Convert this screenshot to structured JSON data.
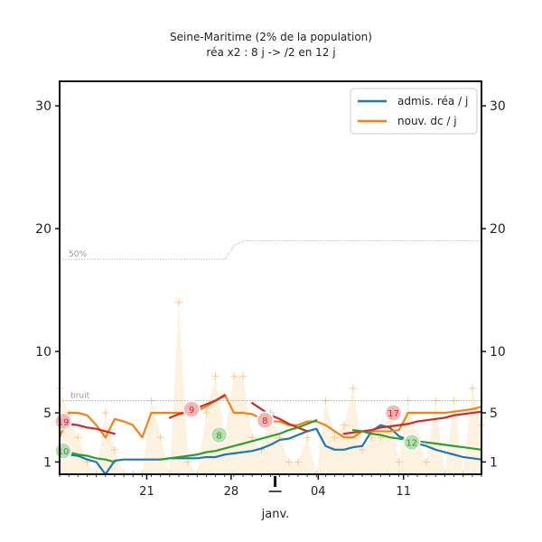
{
  "chart_data": {
    "type": "line",
    "title": "Seine-Maritime (2% de la population)",
    "subtitle": "réa x2 : 8 j -> /2 en 12 j",
    "xlabel": "janv.",
    "x_ticks": [
      "21",
      "28",
      "04",
      "11"
    ],
    "y_ticks": [
      "1",
      "5",
      "10",
      "20",
      "30"
    ],
    "ylim": [
      0,
      32
    ],
    "legend_position": "top-right",
    "ref_labels": {
      "noise": "bruit",
      "half": "50%"
    },
    "series": [
      {
        "name": "admis. réa / j",
        "color": "#1f77b4",
        "x": [
          0,
          1,
          2,
          3,
          4,
          5,
          6,
          7,
          8,
          9,
          10,
          11,
          12,
          13,
          14,
          15,
          16,
          17,
          18,
          19,
          20,
          21,
          22,
          23,
          24,
          25,
          26,
          27,
          28,
          29,
          30,
          31,
          32,
          33,
          34,
          35,
          36,
          37,
          38,
          39,
          40,
          41,
          42,
          43,
          44,
          45,
          46
        ],
        "values": [
          1.8,
          1.6,
          1.5,
          1.2,
          1.0,
          0.0,
          1.1,
          1.2,
          1.2,
          1.2,
          1.2,
          1.2,
          1.3,
          1.3,
          1.3,
          1.3,
          1.4,
          1.4,
          1.6,
          1.7,
          1.8,
          1.9,
          2.1,
          2.4,
          2.8,
          2.9,
          3.2,
          3.5,
          3.7,
          2.3,
          2.0,
          2.0,
          2.2,
          2.3,
          3.5,
          4.0,
          3.8,
          3.1,
          2.8,
          2.5,
          2.3,
          2.0,
          1.8,
          1.6,
          1.4,
          1.3,
          1.2
        ]
      },
      {
        "name": "nouv. dc / j",
        "color": "#ff7f0e",
        "x": [
          0,
          1,
          2,
          3,
          4,
          5,
          6,
          7,
          8,
          9,
          10,
          11,
          12,
          13,
          14,
          15,
          16,
          17,
          18,
          19,
          20,
          21,
          22,
          23,
          24,
          25,
          26,
          27,
          28,
          29,
          30,
          31,
          32,
          33,
          34,
          35,
          36,
          37,
          38,
          39,
          40,
          41,
          42,
          43,
          44,
          45,
          46
        ],
        "values": [
          3.0,
          5.0,
          5.0,
          4.8,
          4.0,
          3.0,
          4.5,
          4.3,
          4.0,
          3.0,
          5.0,
          5.0,
          5.0,
          5.0,
          5.0,
          5.2,
          5.5,
          6.0,
          6.5,
          5.0,
          5.0,
          4.9,
          4.5,
          4.3,
          4.3,
          4.0,
          4.0,
          4.3,
          4.3,
          4.0,
          3.5,
          3.0,
          3.0,
          3.5,
          3.5,
          3.5,
          3.5,
          3.6,
          5.0,
          5.0,
          5.0,
          5.0,
          5.0,
          5.1,
          5.2,
          5.3,
          5.5
        ]
      }
    ],
    "trend_lines": [
      {
        "color": "#d62728",
        "x": [
          0,
          1,
          2,
          3,
          4,
          5,
          6
        ],
        "values": [
          4.3,
          4.1,
          4.0,
          3.8,
          3.7,
          3.5,
          3.3
        ],
        "label": "19",
        "label_x": 0,
        "label_y": 4.3
      },
      {
        "color": "#d62728",
        "x": [
          12,
          13,
          14,
          15,
          16,
          17,
          18
        ],
        "values": [
          4.6,
          4.9,
          5.1,
          5.4,
          5.7,
          6.0,
          6.4
        ],
        "label": "9",
        "label_x": 14,
        "label_y": 5.3
      },
      {
        "color": "#d62728",
        "x": [
          21,
          22,
          23,
          24,
          25,
          26,
          27
        ],
        "values": [
          5.8,
          5.3,
          4.8,
          4.5,
          4.1,
          3.8,
          3.5
        ],
        "label": "8",
        "label_x": 22,
        "label_y": 4.4
      },
      {
        "color": "#d62728",
        "x": [
          31,
          32,
          33,
          34,
          35,
          36,
          37,
          38,
          39,
          40,
          41,
          42,
          43,
          44,
          45,
          46
        ],
        "values": [
          3.3,
          3.4,
          3.5,
          3.6,
          3.8,
          3.9,
          4.0,
          4.1,
          4.3,
          4.4,
          4.5,
          4.6,
          4.8,
          4.9,
          5.0,
          5.1
        ],
        "label": "17",
        "label_x": 36,
        "label_y": 5.0
      },
      {
        "color": "#2ca02c",
        "x": [
          0,
          1,
          2,
          3,
          4,
          5,
          6
        ],
        "values": [
          1.9,
          1.8,
          1.6,
          1.5,
          1.3,
          1.2,
          1.0
        ],
        "label": "10",
        "label_x": 0,
        "label_y": 1.9
      },
      {
        "color": "#2ca02c",
        "x": [
          11,
          12,
          13,
          14,
          15,
          16,
          17,
          18,
          19,
          20,
          21,
          22,
          23,
          24,
          25,
          26,
          27,
          28
        ],
        "values": [
          1.2,
          1.3,
          1.4,
          1.5,
          1.6,
          1.8,
          1.9,
          2.1,
          2.3,
          2.5,
          2.7,
          2.9,
          3.1,
          3.3,
          3.6,
          3.8,
          4.1,
          4.4
        ],
        "label": "8",
        "label_x": 17,
        "label_y": 3.2
      },
      {
        "color": "#2ca02c",
        "x": [
          32,
          33,
          34,
          35,
          36,
          37,
          38,
          39,
          40,
          41,
          42,
          43,
          44,
          45,
          46
        ],
        "values": [
          3.6,
          3.5,
          3.3,
          3.2,
          3.0,
          2.9,
          2.8,
          2.7,
          2.6,
          2.5,
          2.4,
          2.3,
          2.2,
          2.1,
          2.0
        ],
        "label": "12",
        "label_x": 38,
        "label_y": 2.6
      }
    ],
    "raw_counts": {
      "x": [
        0,
        1,
        2,
        3,
        4,
        5,
        6,
        7,
        8,
        9,
        10,
        11,
        12,
        13,
        14,
        15,
        16,
        17,
        18,
        19,
        20,
        21,
        22,
        23,
        24,
        25,
        26,
        27,
        28,
        29,
        30,
        31,
        32,
        33,
        34,
        35,
        36,
        37,
        38,
        39,
        40,
        41,
        42,
        43,
        44,
        45,
        46
      ],
      "values": [
        7,
        5,
        3,
        1,
        0,
        5,
        2,
        0,
        0,
        0,
        6,
        3,
        0,
        14,
        1,
        0,
        5,
        8,
        3,
        8,
        8,
        3,
        2,
        5,
        3,
        1,
        1,
        3,
        0,
        6,
        3,
        4,
        7,
        2,
        3,
        3,
        5,
        1,
        6,
        3,
        1,
        6,
        0,
        6,
        0,
        7,
        4
      ]
    },
    "noise_level": {
      "x": [
        0,
        46
      ],
      "values": [
        6.0,
        6.0
      ]
    },
    "half_level": {
      "x": [
        0,
        18,
        19,
        20,
        46
      ],
      "values": [
        17.5,
        17.5,
        18.6,
        19.0,
        19.0
      ]
    }
  }
}
